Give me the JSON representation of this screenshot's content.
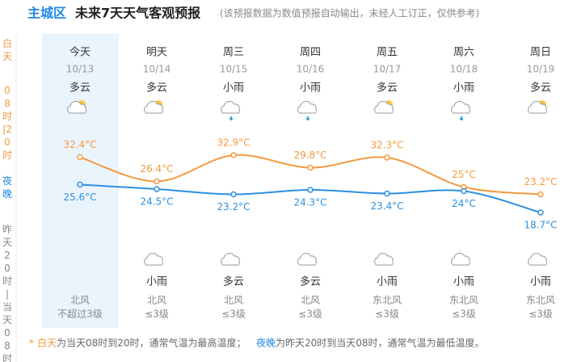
{
  "header": {
    "city": "主城区",
    "title": "未来7天天气客观预报",
    "note": "(该预报数据为数值预报自动输出，未经人工订正，仅供参考)"
  },
  "side": {
    "day_term": "白天",
    "day_period": "08时|20时",
    "night_term": "夜晚",
    "night_period": "昨天20时|当天08时"
  },
  "days": [
    {
      "name": "今天",
      "date": "10/13",
      "day_weather": "多云",
      "night_weather": null,
      "wind_dir": "北风",
      "wind_level": "不超过3级"
    },
    {
      "name": "明天",
      "date": "10/14",
      "day_weather": "多云",
      "night_weather": "小雨",
      "wind_dir": "北风",
      "wind_level": "≤3级"
    },
    {
      "name": "周三",
      "date": "10/15",
      "day_weather": "小雨",
      "night_weather": "多云",
      "wind_dir": "北风",
      "wind_level": "≤3级"
    },
    {
      "name": "周四",
      "date": "10/16",
      "day_weather": "小雨",
      "night_weather": "多云",
      "wind_dir": "北风",
      "wind_level": "≤3级"
    },
    {
      "name": "周五",
      "date": "10/17",
      "day_weather": "多云",
      "night_weather": "小雨",
      "wind_dir": "东北风",
      "wind_level": "≤3级"
    },
    {
      "name": "周六",
      "date": "10/18",
      "day_weather": "小雨",
      "night_weather": "小雨",
      "wind_dir": "东北风",
      "wind_level": "≤3级"
    },
    {
      "name": "周日",
      "date": "10/19",
      "day_weather": "多云",
      "night_weather": "小雨",
      "wind_dir": "东北风",
      "wind_level": "≤3级"
    }
  ],
  "chart_data": {
    "type": "line",
    "series": [
      {
        "color": "#f39a3e",
        "values": [
          32.4,
          26.4,
          32.9,
          29.8,
          32.3,
          25,
          23.2
        ],
        "value_labels": [
          "32.4°C",
          "26.4°C",
          "32.9°C",
          "29.8°C",
          "32.3°C",
          "25°C",
          "23.2°C"
        ]
      },
      {
        "color": "#2e8fe0",
        "values": [
          25.6,
          24.5,
          23.2,
          24.3,
          23.4,
          24,
          18.7
        ],
        "value_labels": [
          "25.6°C",
          "24.5°C",
          "23.2°C",
          "24.3°C",
          "23.4°C",
          "24°C",
          "18.7°C"
        ]
      }
    ]
  },
  "footnote": {
    "star": "*",
    "day_term": "白天",
    "day_text": "为当天08时到20时，通常气温为最高温度；",
    "night_term": "夜晚",
    "night_text": "为昨天20时到当天08时，通常气温为最低温度。"
  }
}
